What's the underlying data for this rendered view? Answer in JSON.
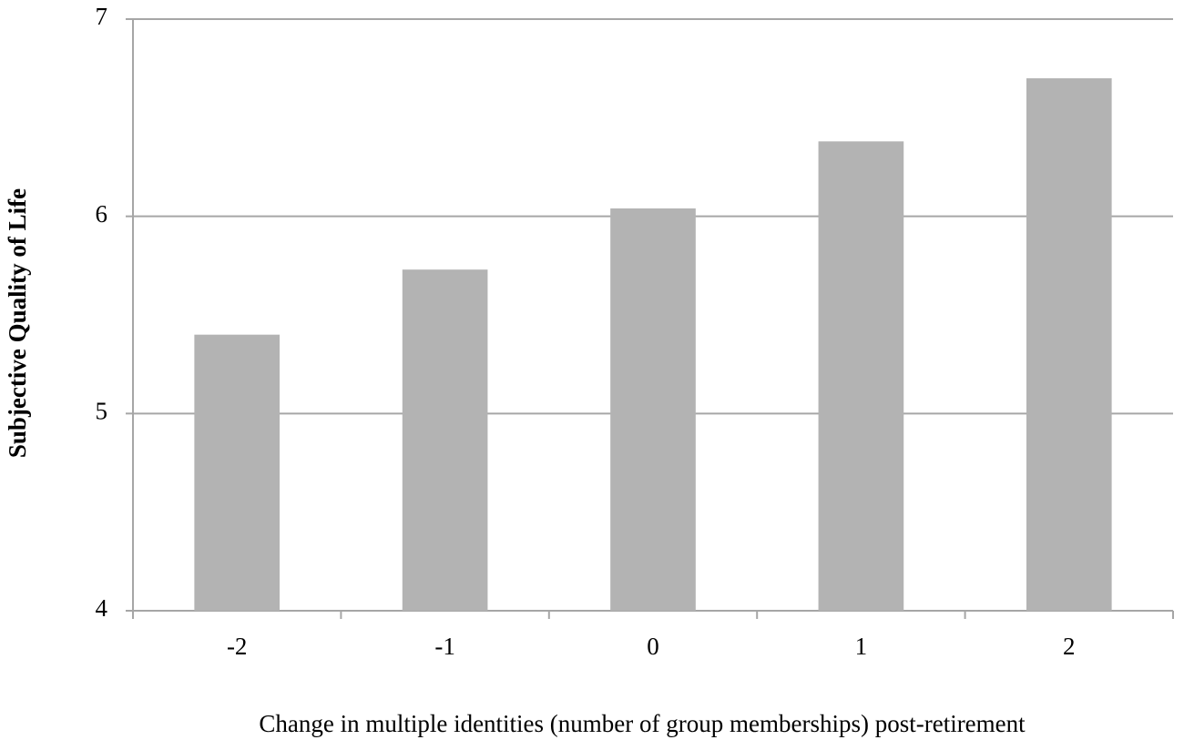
{
  "chart_data": {
    "type": "bar",
    "x_label": "Change in multiple identities (number of group memberships) post-retirement",
    "y_label": "Subjective Quality of Life",
    "categories": [
      "-2",
      "-1",
      "0",
      "1",
      "2"
    ],
    "values": [
      5.4,
      5.73,
      6.04,
      6.38,
      6.7
    ],
    "color": "#b3b3b3",
    "ylim": [
      4,
      7
    ],
    "yticks": [
      4,
      5,
      6,
      7
    ],
    "grid": true
  }
}
